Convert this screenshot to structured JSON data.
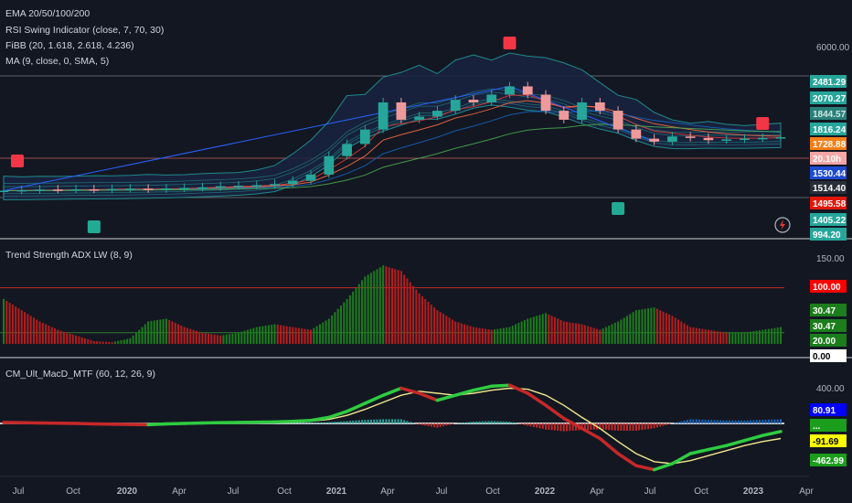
{
  "indicators": {
    "main": [
      "EMA 20/50/100/200",
      "RSI Swing Indicator (close, 7, 70, 30)",
      "FiBB (20, 1.618, 2.618, 4.236)",
      "MA (9, close, 0, SMA, 5)"
    ],
    "adx": "Trend Strength ADX LW (8, 9)",
    "macd": "CM_Ult_MacD_MTF (60, 12, 26, 9)"
  },
  "chart_data": [
    {
      "type": "candlestick",
      "panel": "price",
      "note_series": "monthly-ish closes approximated from candles",
      "x": [
        "2019-07",
        "2019-08",
        "2019-09",
        "2019-10",
        "2019-11",
        "2019-12",
        "2020-01",
        "2020-02",
        "2020-03",
        "2020-04",
        "2020-05",
        "2020-06",
        "2020-07",
        "2020-08",
        "2020-09",
        "2020-10",
        "2020-11",
        "2020-12",
        "2021-01",
        "2021-02",
        "2021-03",
        "2021-04",
        "2021-05",
        "2021-06",
        "2021-07",
        "2021-08",
        "2021-09",
        "2021-10",
        "2021-11",
        "2021-12",
        "2022-01",
        "2022-02",
        "2022-03",
        "2022-04",
        "2022-05",
        "2022-06",
        "2022-07",
        "2022-08",
        "2022-09",
        "2022-10",
        "2022-11",
        "2022-12",
        "2023-01",
        "2023-02"
      ],
      "close": [
        1000,
        1005,
        1010,
        1008,
        1012,
        1010,
        1015,
        1018,
        1012,
        1020,
        1025,
        1030,
        1040,
        1045,
        1050,
        1060,
        1090,
        1150,
        1350,
        1500,
        1700,
        2150,
        1850,
        1900,
        2000,
        2200,
        2150,
        2300,
        2470,
        2300,
        2000,
        1850,
        2150,
        2000,
        1700,
        1570,
        1530,
        1600,
        1580,
        1550,
        1560,
        1570,
        1580,
        1590
      ],
      "y_axis_ticks": [
        "6000.00",
        "2481.29",
        "2070.27",
        "1844.57",
        "1816.24",
        "1728.88",
        "20.10h",
        "1530.44",
        "1514.40",
        "1495.58",
        "1405.22",
        "994.20"
      ]
    },
    {
      "type": "bar",
      "panel": "adx",
      "title": "Trend Strength ADX LW (8, 9)",
      "y_axis_ticks": [
        "150.00",
        "100.00",
        "30.47",
        "30.47",
        "20.00",
        "0.00"
      ],
      "levels": [
        100,
        20
      ],
      "series": [
        {
          "values": [
            80,
            60,
            40,
            25,
            15,
            5,
            3,
            10,
            40,
            45,
            30,
            20,
            15,
            20,
            30,
            35,
            30,
            25,
            45,
            80,
            120,
            140,
            130,
            90,
            60,
            40,
            30,
            25,
            30,
            45,
            55,
            40,
            35,
            25,
            40,
            60,
            65,
            50,
            30,
            25,
            20,
            20,
            25,
            30
          ]
        }
      ]
    },
    {
      "type": "line",
      "panel": "macd",
      "title": "CM_Ult_MacD_MTF (60, 12, 26, 9)",
      "y_axis_ticks": [
        "400.00",
        "80.91",
        "-91.69",
        "-462.99"
      ],
      "series": [
        {
          "values": [
            10,
            8,
            5,
            2,
            0,
            -5,
            -8,
            -10,
            -12,
            -5,
            0,
            5,
            8,
            10,
            12,
            15,
            20,
            30,
            60,
            120,
            200,
            280,
            350,
            300,
            230,
            280,
            330,
            370,
            380,
            300,
            180,
            50,
            -50,
            -150,
            -300,
            -420,
            -460,
            -400,
            -300,
            -260,
            -220,
            -170,
            -120,
            -80
          ]
        },
        {
          "values": [
            5,
            5,
            4,
            3,
            2,
            0,
            -3,
            -6,
            -8,
            -7,
            -4,
            0,
            3,
            6,
            9,
            12,
            15,
            22,
            40,
            80,
            140,
            210,
            280,
            320,
            300,
            280,
            300,
            330,
            350,
            340,
            280,
            180,
            60,
            -50,
            -180,
            -300,
            -380,
            -400,
            -370,
            -320,
            -270,
            -220,
            -180,
            -150
          ]
        }
      ]
    }
  ],
  "x_axis": {
    "labels": [
      "Jul",
      "Oct",
      "2020",
      "Apr",
      "Jul",
      "Oct",
      "2021",
      "Apr",
      "Jul",
      "Oct",
      "2022",
      "Apr",
      "Jul",
      "Oct",
      "2023",
      "Apr"
    ]
  },
  "price_tags": [
    {
      "text": "2481.29",
      "color": "#26a69a",
      "text_color": "#ffffff"
    },
    {
      "text": "2070.27",
      "color": "#26a69a",
      "text_color": "#ffffff"
    },
    {
      "text": "1844.57",
      "color": "#2a7f79",
      "text_color": "#cfe8e5"
    },
    {
      "text": "1816.24",
      "color": "#26a69a",
      "text_color": "#ffffff"
    },
    {
      "text": "1728.88",
      "color": "#f57f17",
      "text_color": "#ffffff"
    },
    {
      "text": "20.10h",
      "color": "#f7a6a6",
      "text_color": "#ffffff"
    },
    {
      "text": "1530.44",
      "color": "#1e4bd2",
      "text_color": "#ffffff"
    },
    {
      "text": "1514.40",
      "color": "#2a2e39",
      "text_color": "#ffffff"
    },
    {
      "text": "1495.58",
      "color": "#e3170a",
      "text_color": "#ffffff"
    },
    {
      "text": "1405.22",
      "color": "#26a69a",
      "text_color": "#ffffff"
    },
    {
      "text": "994.20",
      "color": "#26a69a",
      "text_color": "#ffffff"
    }
  ],
  "adx_tags": [
    {
      "text": "100.00",
      "color": "#ff0000",
      "text_color": "#ffffff"
    },
    {
      "text": "30.47",
      "color": "#1b7d1b",
      "text_color": "#ffffff"
    },
    {
      "text": "30.47",
      "color": "#1b7d1b",
      "text_color": "#ffffff"
    },
    {
      "text": "20.00",
      "color": "#1b7d1b",
      "text_color": "#ffffff"
    },
    {
      "text": "0.00",
      "color": "#ffffff",
      "text_color": "#000000"
    }
  ],
  "macd_tags": [
    {
      "text": "80.91",
      "color": "#0000ff",
      "text_color": "#ffffff"
    },
    {
      "text": "...",
      "color": "#1b9e1b",
      "text_color": "#ffffff"
    },
    {
      "text": "-91.69",
      "color": "#ffff00",
      "text_color": "#000000"
    },
    {
      "text": "-462.99",
      "color": "#1b9e1b",
      "text_color": "#ffffff"
    }
  ],
  "axis_top_label": "6000.00",
  "adx_top_label": "150.00",
  "macd_top_label": "400.00",
  "colors": {
    "background": "#131722",
    "up": "#26a69a",
    "down": "#ef9a9a",
    "adx_green": "#1b7d1b",
    "adx_red": "#b71c1c",
    "macd_green": "#2ecc40",
    "macd_red": "#c62828",
    "signal": "#f0e68c",
    "band": "#1f8a8a"
  }
}
